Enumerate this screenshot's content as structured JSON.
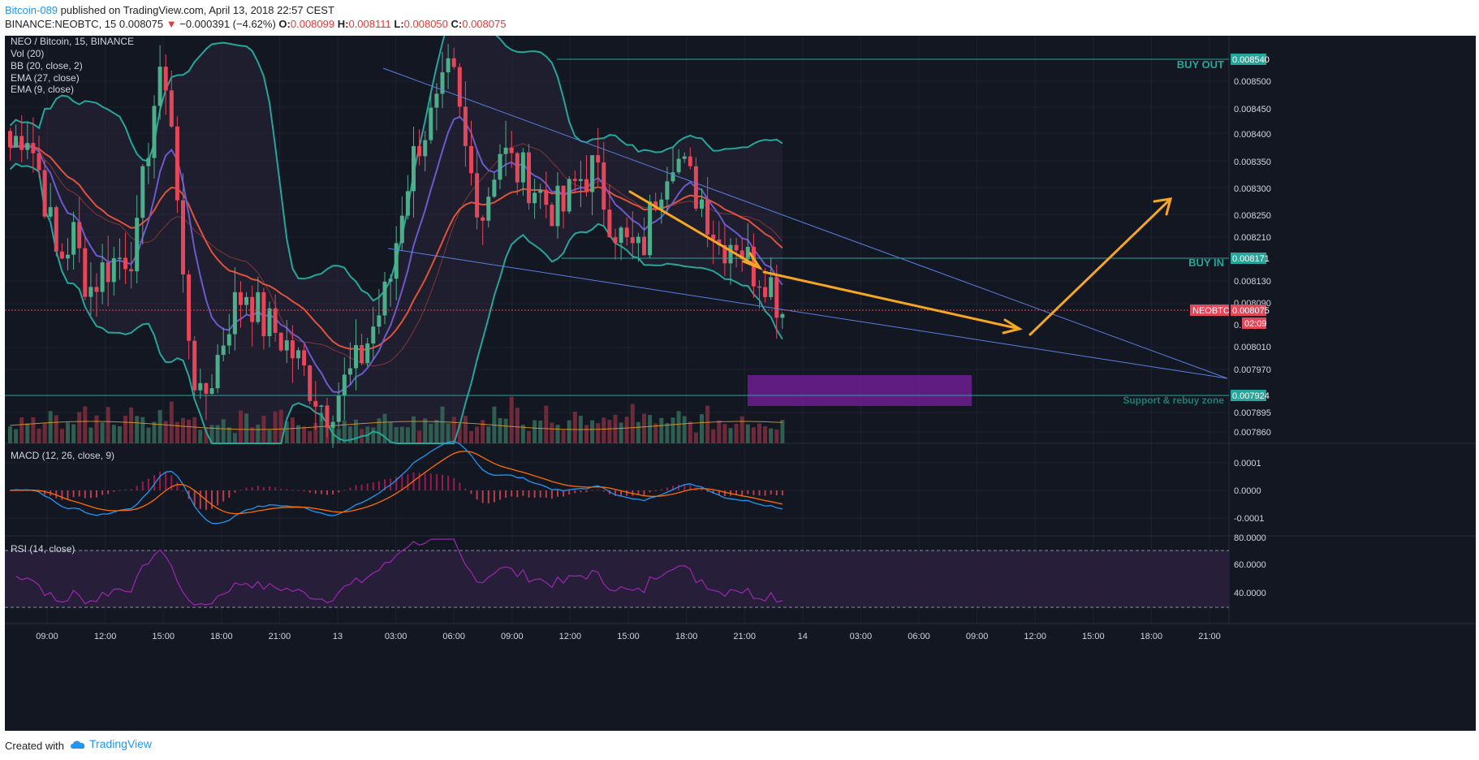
{
  "header": {
    "author": "Bitcoin-089",
    "published": " published on TradingView.com, April 13, 2018 22:57 CEST",
    "symbol": "BINANCE:NEOBTC, 15",
    "last": "0.008075",
    "arrow": "▼",
    "change": "−0.000391 (−4.62%)",
    "o_label": "O:",
    "o_value": "0.008099",
    "h_label": "H:",
    "h_value": "0.008111",
    "l_label": "L:",
    "l_value": "0.008050",
    "c_label": "C:",
    "c_value": "0.008075"
  },
  "legend": {
    "pair": "NEO / Bitcoin, 15, BINANCE",
    "vol": "Vol (20)",
    "bb": "BB (20, close, 2)",
    "ema27": "EMA (27, close)",
    "ema9": "EMA (9, close)",
    "macd": "MACD (12, 26, close, 9)",
    "rsi": "RSI (14, close)"
  },
  "colors": {
    "background": "#131722",
    "up": "#4caf8a",
    "down": "#e5475a",
    "bb": "#26a69a",
    "ema27": "#e0533b",
    "ema9": "#6a5acd",
    "trend": "#5b7fde",
    "arrow": "#f5a623",
    "zone": "#7b1fa2",
    "level": "#26a69a"
  },
  "chart_data": [
    {
      "type": "candlestick",
      "title": "NEO / Bitcoin, 15, BINANCE",
      "x_time_labels": [
        "09:00",
        "12:00",
        "15:00",
        "18:00",
        "21:00",
        "13",
        "03:00",
        "06:00",
        "09:00",
        "12:00",
        "15:00",
        "18:00",
        "21:00",
        "14",
        "03:00",
        "06:00",
        "09:00",
        "12:00",
        "15:00",
        "18:00",
        "21:00"
      ],
      "y_tick_labels": [
        "0.008500",
        "0.008450",
        "0.008400",
        "0.008350",
        "0.008300",
        "0.008250",
        "0.008210",
        "0.008171",
        "0.008130",
        "0.008090",
        "0.008075",
        "0.008010",
        "0.007970",
        "0.007924",
        "0.007895",
        "0.007860"
      ],
      "close_path": [
        0.00838,
        0.00842,
        0.00832,
        0.00817,
        0.00822,
        0.00812,
        0.00816,
        0.00818,
        0.0082,
        0.00845,
        0.00852,
        0.00812,
        0.0079,
        0.00798,
        0.00808,
        0.00812,
        0.00806,
        0.00804,
        0.008,
        0.00795,
        0.0079,
        0.00794,
        0.00798,
        0.00805,
        0.00812,
        0.0083,
        0.0084,
        0.00844,
        0.00852,
        0.00835,
        0.00826,
        0.00838,
        0.00834,
        0.00832,
        0.00828,
        0.00826,
        0.00832,
        0.00834,
        0.00826,
        0.0082,
        0.00818,
        0.0083,
        0.00838,
        0.00832,
        0.00828,
        0.0082,
        0.00822,
        0.00816,
        0.00815,
        0.00808
      ],
      "last_price": 0.008075,
      "countdown": "02:09",
      "levels": [
        {
          "label": "BUY OUT",
          "value": 0.00854,
          "tag": "0.008540"
        },
        {
          "label": "BUY IN",
          "value": 0.008171,
          "tag": "0.008171"
        },
        {
          "label": "Support & rebuy zone",
          "value": 0.007924,
          "tag": "0.007924"
        }
      ],
      "symbol_tag": "NEOBTC",
      "price_tag": "0.008075"
    },
    {
      "type": "bar",
      "title": "Vol (20)",
      "values": [
        6,
        7,
        8,
        5,
        9,
        7,
        6,
        10,
        8,
        7,
        5,
        6,
        8,
        9,
        7,
        6,
        5,
        8,
        7,
        6,
        9,
        8,
        7,
        6,
        5,
        7,
        8,
        9,
        10,
        6,
        7,
        8,
        7,
        6,
        5,
        6,
        8,
        7,
        6,
        5,
        7,
        8,
        6,
        7,
        6,
        5,
        8,
        9,
        7,
        6,
        8,
        7,
        6,
        5,
        7,
        6,
        8,
        7,
        9,
        6,
        5,
        7,
        8,
        6,
        7,
        8,
        9,
        6,
        5,
        7,
        8,
        6,
        7,
        5,
        6,
        8,
        7,
        6,
        5,
        7
      ]
    },
    {
      "type": "line",
      "title": "MACD (12, 26, close, 9)",
      "y_tick_labels": [
        "0.0001",
        "0.0000",
        "-0.0001"
      ],
      "ylim": [
        -0.00016,
        0.00016
      ]
    },
    {
      "type": "line",
      "title": "RSI (14, close)",
      "y_tick_labels": [
        "80.0000",
        "60.0000",
        "40.0000"
      ],
      "bands": [
        70,
        30
      ]
    }
  ]
}
